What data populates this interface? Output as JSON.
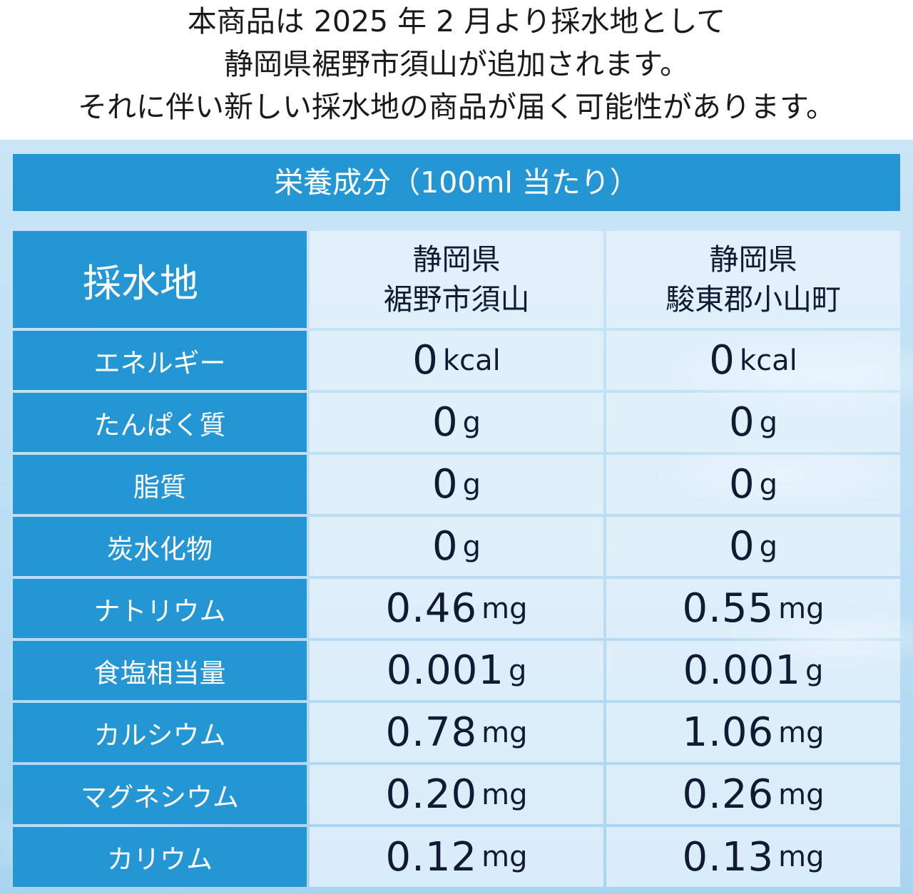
{
  "notice": {
    "line1": "本商品は 2025 年 2 月より採水地として",
    "line2": "静岡県裾野市須山が追加されます。",
    "line3": "それに伴い新しい採水地の商品が届く可能性があります。"
  },
  "table": {
    "title": "栄養成分（100ml 当たり）",
    "header": {
      "label": "採水地",
      "col1": {
        "line1": "静岡県",
        "line2": "裾野市須山"
      },
      "col2": {
        "line1": "静岡県",
        "line2": "駿東郡小山町"
      }
    },
    "rows": [
      {
        "label": "エネルギー",
        "v1": "0",
        "u1": "kcal",
        "v2": "0",
        "u2": "kcal"
      },
      {
        "label": "たんぱく質",
        "v1": "0",
        "u1": "g",
        "v2": "0",
        "u2": "g"
      },
      {
        "label": "脂質",
        "v1": "0",
        "u1": "g",
        "v2": "0",
        "u2": "g"
      },
      {
        "label": "炭水化物",
        "v1": "0",
        "u1": "g",
        "v2": "0",
        "u2": "g"
      },
      {
        "label": "ナトリウム",
        "v1": "0.46",
        "u1": "mg",
        "v2": "0.55",
        "u2": "mg"
      },
      {
        "label": "食塩相当量",
        "v1": "0.001",
        "u1": "g",
        "v2": "0.001",
        "u2": "g"
      },
      {
        "label": "カルシウム",
        "v1": "0.78",
        "u1": "mg",
        "v2": "1.06",
        "u2": "mg"
      },
      {
        "label": "マグネシウム",
        "v1": "0.20",
        "u1": "mg",
        "v2": "0.26",
        "u2": "mg"
      },
      {
        "label": "カリウム",
        "v1": "0.12",
        "u1": "mg",
        "v2": "0.13",
        "u2": "mg"
      }
    ]
  },
  "colors": {
    "header_blue": "#2596d4",
    "value_bg": "#ebf5fc",
    "text_dark": "#111a33"
  }
}
